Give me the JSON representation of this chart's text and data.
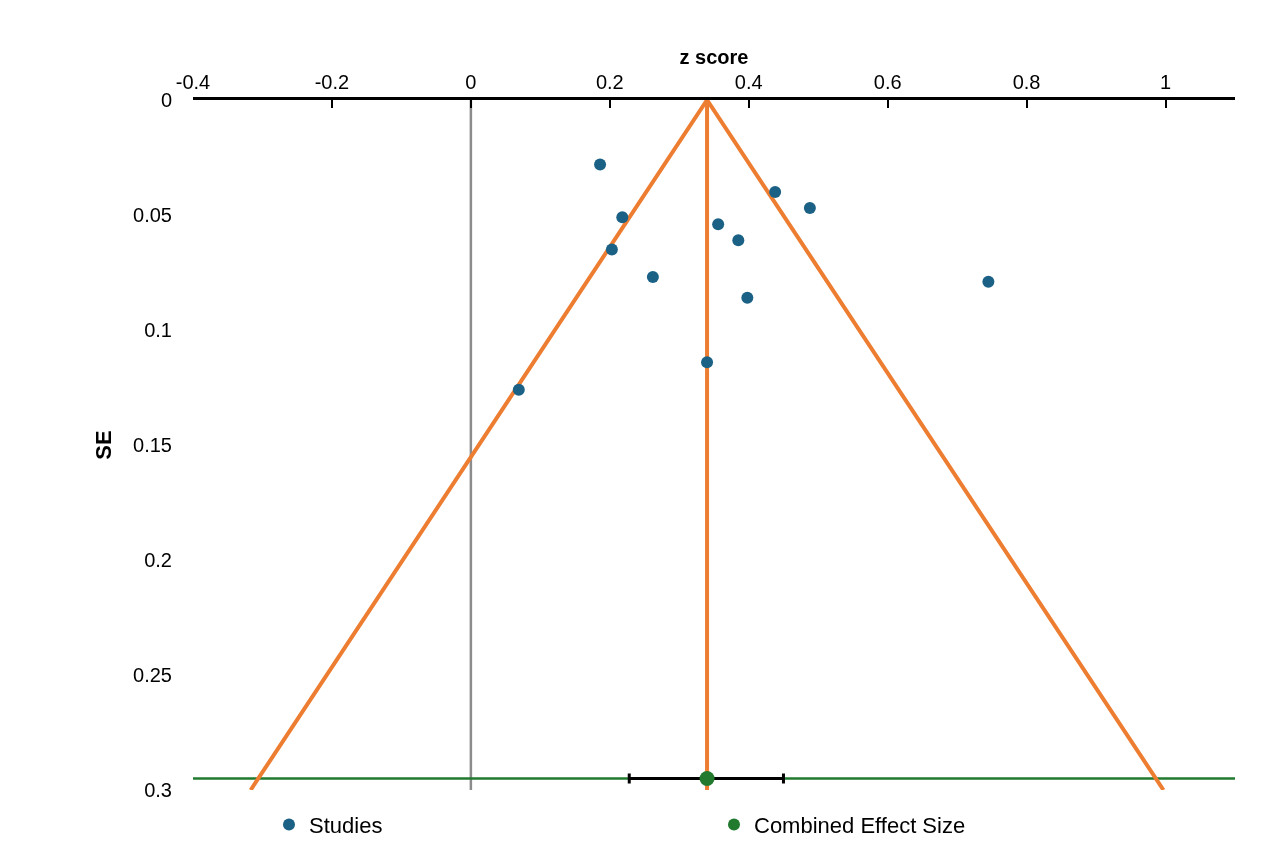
{
  "chart_data": {
    "type": "scatter",
    "xlabel": "z score",
    "ylabel": "SE",
    "xlim": [
      -0.4,
      1.1
    ],
    "xticks": [
      -0.4,
      -0.2,
      0,
      0.2,
      0.4,
      0.6,
      0.8,
      1
    ],
    "ylim": [
      0.3,
      0
    ],
    "yticks": [
      0,
      0.05,
      0.1,
      0.15,
      0.2,
      0.25,
      0.3
    ],
    "grid": false,
    "legend": "bottom",
    "marker": "circle",
    "series": [
      {
        "name": "Studies",
        "color": "#1a6185",
        "x": [
          0.186,
          0.438,
          0.488,
          0.218,
          0.356,
          0.385,
          0.203,
          0.262,
          0.745,
          0.398,
          0.34,
          0.069
        ],
        "values": [
          0.028,
          0.04,
          0.047,
          0.051,
          0.054,
          0.061,
          0.065,
          0.077,
          0.079,
          0.086,
          0.114,
          0.126
        ]
      },
      {
        "type": "line",
        "color": "#ed7d31",
        "x": [
          -0.317,
          0.34,
          0.997
        ],
        "values": [
          0.3,
          0,
          0.3
        ],
        "marker": "none"
      },
      {
        "type": "line",
        "color": "#ed7d31",
        "x": [
          0.34,
          0.34
        ],
        "values": [
          0,
          0.3
        ],
        "marker": "none"
      },
      {
        "name": "Combined Effect Size",
        "color": "#217a2e",
        "x": [
          0.34
        ],
        "values": [
          0.295
        ],
        "xerrors": [
          [
            0.228,
            0.45
          ]
        ]
      }
    ],
    "ref_lines": [
      {
        "axis": "x",
        "value": 0,
        "color": "#8c8c8c"
      },
      {
        "axis": "y",
        "value": 0.295,
        "color": "#217a2e"
      }
    ]
  }
}
